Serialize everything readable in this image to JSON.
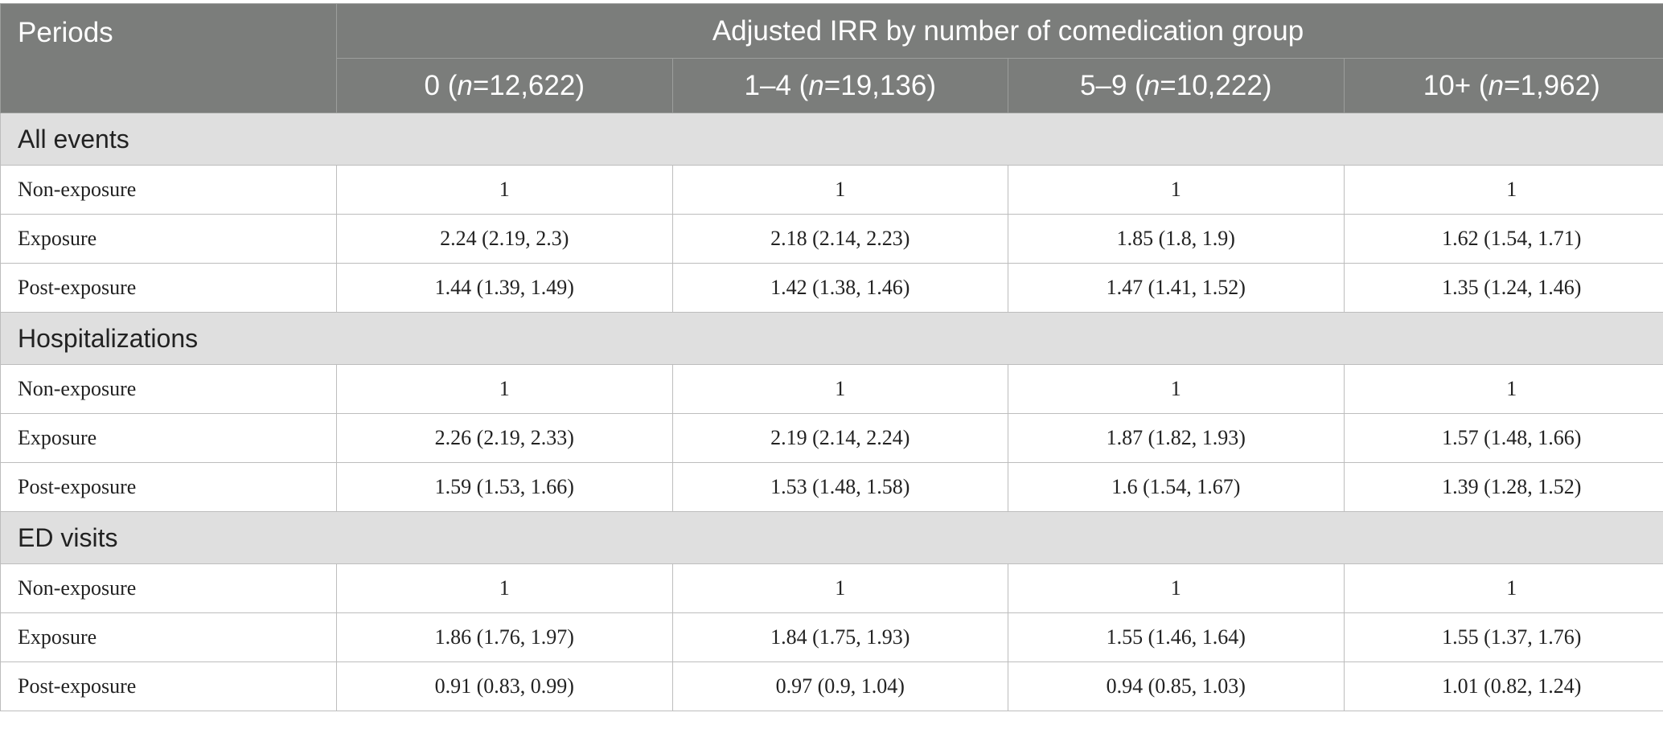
{
  "header": {
    "periods_label": "Periods",
    "span_title": "Adjusted IRR by number of comedication group",
    "groups": [
      {
        "label": "0",
        "n": "12,622"
      },
      {
        "label": "1–4",
        "n": "19,136"
      },
      {
        "label": "5–9",
        "n": "10,222"
      },
      {
        "label": "10+",
        "n": "1,962"
      }
    ]
  },
  "sections": [
    {
      "title": "All events",
      "rows": [
        {
          "label": "Non-exposure",
          "values": [
            "1",
            "1",
            "1",
            "1"
          ]
        },
        {
          "label": "Exposure",
          "values": [
            "2.24 (2.19, 2.3)",
            "2.18 (2.14, 2.23)",
            "1.85 (1.8, 1.9)",
            "1.62 (1.54, 1.71)"
          ]
        },
        {
          "label": "Post-exposure",
          "values": [
            "1.44 (1.39, 1.49)",
            "1.42 (1.38, 1.46)",
            "1.47 (1.41, 1.52)",
            "1.35 (1.24, 1.46)"
          ]
        }
      ]
    },
    {
      "title": "Hospitalizations",
      "rows": [
        {
          "label": "Non-exposure",
          "values": [
            "1",
            "1",
            "1",
            "1"
          ]
        },
        {
          "label": "Exposure",
          "values": [
            "2.26 (2.19, 2.33)",
            "2.19 (2.14, 2.24)",
            "1.87 (1.82, 1.93)",
            "1.57 (1.48, 1.66)"
          ]
        },
        {
          "label": "Post-exposure",
          "values": [
            "1.59 (1.53, 1.66)",
            "1.53 (1.48, 1.58)",
            "1.6 (1.54, 1.67)",
            "1.39 (1.28, 1.52)"
          ]
        }
      ]
    },
    {
      "title": "ED visits",
      "rows": [
        {
          "label": "Non-exposure",
          "values": [
            "1",
            "1",
            "1",
            "1"
          ]
        },
        {
          "label": "Exposure",
          "values": [
            "1.86 (1.76, 1.97)",
            "1.84 (1.75, 1.93)",
            "1.55 (1.46, 1.64)",
            "1.55 (1.37, 1.76)"
          ]
        },
        {
          "label": "Post-exposure",
          "values": [
            "0.91 (0.83, 0.99)",
            "0.97 (0.9, 1.04)",
            "0.94 (0.85, 1.03)",
            "1.01 (0.82, 1.24)"
          ]
        }
      ]
    }
  ]
}
